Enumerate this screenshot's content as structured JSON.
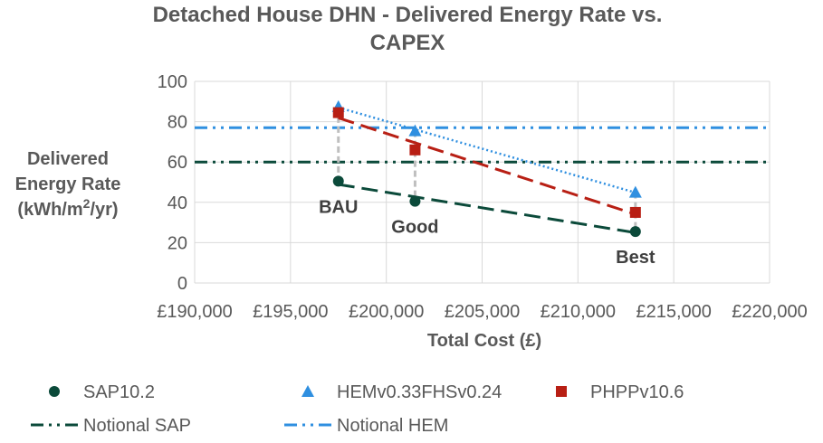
{
  "chart_data": {
    "type": "scatter",
    "title_lines": [
      "Detached House DHN - Delivered Energy Rate vs.",
      "CAPEX"
    ],
    "ylabel_lines": [
      "Delivered",
      "Energy Rate",
      "(kWh/m",
      "2",
      "/yr)"
    ],
    "xlabel": "Total Cost (£)",
    "xlim": [
      190000,
      220000
    ],
    "ylim": [
      0,
      100
    ],
    "x_ticks": [
      190000,
      195000,
      200000,
      205000,
      210000,
      215000,
      220000
    ],
    "x_tick_labels": [
      "£190,000",
      "£195,000",
      "£200,000",
      "£205,000",
      "£210,000",
      "£215,000",
      "£220,000"
    ],
    "y_ticks": [
      0,
      20,
      40,
      60,
      80,
      100
    ],
    "y_tick_labels": [
      "0",
      "20",
      "40",
      "60",
      "80",
      "100"
    ],
    "grid": true,
    "legend_position": "bottom",
    "series": [
      {
        "name": "SAP10.2",
        "marker": "circle",
        "color": "#0b4a3a",
        "trendline": "dash",
        "x": [
          197500,
          201500,
          213000
        ],
        "y": [
          50.5,
          40.5,
          25.5
        ]
      },
      {
        "name": "HEMv0.33FHSv0.24",
        "marker": "triangle",
        "color": "#2f8fe0",
        "trendline": "dot",
        "x": [
          197500,
          201500,
          213000
        ],
        "y": [
          87.5,
          75.5,
          45
        ]
      },
      {
        "name": "PHPPv10.6",
        "marker": "square",
        "color": "#b81f14",
        "trendline": "dash",
        "x": [
          197500,
          201500,
          213000
        ],
        "y": [
          84.5,
          66,
          35
        ]
      }
    ],
    "reference_lines": [
      {
        "name": "Notional SAP",
        "y": 60,
        "color": "#0b4a3a",
        "style": "dash-dot-dot"
      },
      {
        "name": "Notional HEM",
        "y": 77,
        "color": "#2f8fe0",
        "style": "dash-dot-dot"
      }
    ],
    "annotations": [
      {
        "text": "BAU",
        "x": 197500
      },
      {
        "text": "Good",
        "x": 201500
      },
      {
        "text": "Best",
        "x": 213000
      }
    ]
  }
}
